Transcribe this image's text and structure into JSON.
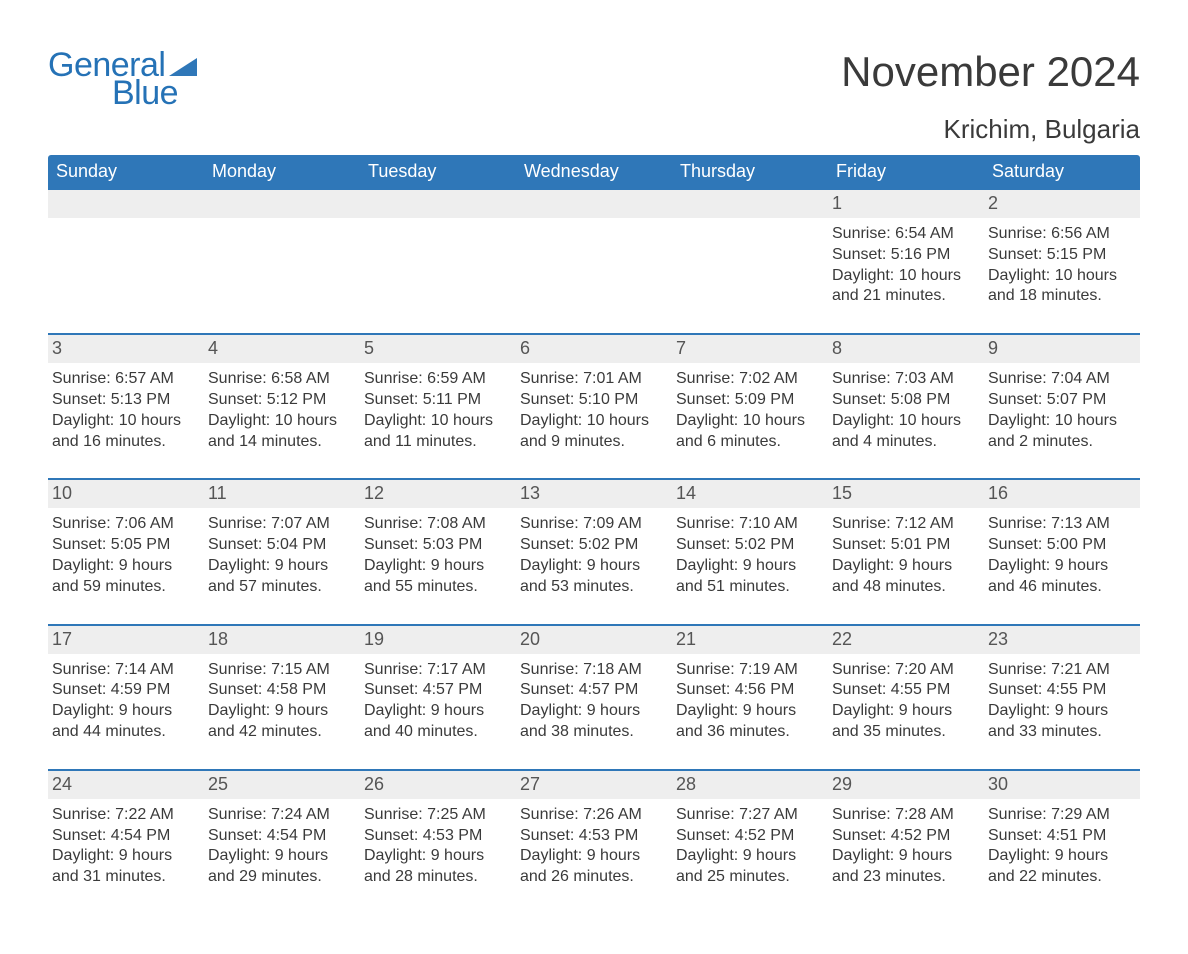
{
  "logo": {
    "text1": "General",
    "text2": "Blue",
    "brand_color": "#2572b6"
  },
  "title": "November 2024",
  "location": "Krichim, Bulgaria",
  "colors": {
    "header_bg": "#2f77b8",
    "header_fg": "#ffffff",
    "daynum_band": "#eeeeee",
    "text": "#3a3a3a",
    "rule": "#2f77b8"
  },
  "days_of_week": [
    "Sunday",
    "Monday",
    "Tuesday",
    "Wednesday",
    "Thursday",
    "Friday",
    "Saturday"
  ],
  "weeks": [
    [
      null,
      null,
      null,
      null,
      null,
      {
        "n": "1",
        "sunrise": "6:54 AM",
        "sunset": "5:16 PM",
        "daylight": "10 hours and 21 minutes."
      },
      {
        "n": "2",
        "sunrise": "6:56 AM",
        "sunset": "5:15 PM",
        "daylight": "10 hours and 18 minutes."
      }
    ],
    [
      {
        "n": "3",
        "sunrise": "6:57 AM",
        "sunset": "5:13 PM",
        "daylight": "10 hours and 16 minutes."
      },
      {
        "n": "4",
        "sunrise": "6:58 AM",
        "sunset": "5:12 PM",
        "daylight": "10 hours and 14 minutes."
      },
      {
        "n": "5",
        "sunrise": "6:59 AM",
        "sunset": "5:11 PM",
        "daylight": "10 hours and 11 minutes."
      },
      {
        "n": "6",
        "sunrise": "7:01 AM",
        "sunset": "5:10 PM",
        "daylight": "10 hours and 9 minutes."
      },
      {
        "n": "7",
        "sunrise": "7:02 AM",
        "sunset": "5:09 PM",
        "daylight": "10 hours and 6 minutes."
      },
      {
        "n": "8",
        "sunrise": "7:03 AM",
        "sunset": "5:08 PM",
        "daylight": "10 hours and 4 minutes."
      },
      {
        "n": "9",
        "sunrise": "7:04 AM",
        "sunset": "5:07 PM",
        "daylight": "10 hours and 2 minutes."
      }
    ],
    [
      {
        "n": "10",
        "sunrise": "7:06 AM",
        "sunset": "5:05 PM",
        "daylight": "9 hours and 59 minutes."
      },
      {
        "n": "11",
        "sunrise": "7:07 AM",
        "sunset": "5:04 PM",
        "daylight": "9 hours and 57 minutes."
      },
      {
        "n": "12",
        "sunrise": "7:08 AM",
        "sunset": "5:03 PM",
        "daylight": "9 hours and 55 minutes."
      },
      {
        "n": "13",
        "sunrise": "7:09 AM",
        "sunset": "5:02 PM",
        "daylight": "9 hours and 53 minutes."
      },
      {
        "n": "14",
        "sunrise": "7:10 AM",
        "sunset": "5:02 PM",
        "daylight": "9 hours and 51 minutes."
      },
      {
        "n": "15",
        "sunrise": "7:12 AM",
        "sunset": "5:01 PM",
        "daylight": "9 hours and 48 minutes."
      },
      {
        "n": "16",
        "sunrise": "7:13 AM",
        "sunset": "5:00 PM",
        "daylight": "9 hours and 46 minutes."
      }
    ],
    [
      {
        "n": "17",
        "sunrise": "7:14 AM",
        "sunset": "4:59 PM",
        "daylight": "9 hours and 44 minutes."
      },
      {
        "n": "18",
        "sunrise": "7:15 AM",
        "sunset": "4:58 PM",
        "daylight": "9 hours and 42 minutes."
      },
      {
        "n": "19",
        "sunrise": "7:17 AM",
        "sunset": "4:57 PM",
        "daylight": "9 hours and 40 minutes."
      },
      {
        "n": "20",
        "sunrise": "7:18 AM",
        "sunset": "4:57 PM",
        "daylight": "9 hours and 38 minutes."
      },
      {
        "n": "21",
        "sunrise": "7:19 AM",
        "sunset": "4:56 PM",
        "daylight": "9 hours and 36 minutes."
      },
      {
        "n": "22",
        "sunrise": "7:20 AM",
        "sunset": "4:55 PM",
        "daylight": "9 hours and 35 minutes."
      },
      {
        "n": "23",
        "sunrise": "7:21 AM",
        "sunset": "4:55 PM",
        "daylight": "9 hours and 33 minutes."
      }
    ],
    [
      {
        "n": "24",
        "sunrise": "7:22 AM",
        "sunset": "4:54 PM",
        "daylight": "9 hours and 31 minutes."
      },
      {
        "n": "25",
        "sunrise": "7:24 AM",
        "sunset": "4:54 PM",
        "daylight": "9 hours and 29 minutes."
      },
      {
        "n": "26",
        "sunrise": "7:25 AM",
        "sunset": "4:53 PM",
        "daylight": "9 hours and 28 minutes."
      },
      {
        "n": "27",
        "sunrise": "7:26 AM",
        "sunset": "4:53 PM",
        "daylight": "9 hours and 26 minutes."
      },
      {
        "n": "28",
        "sunrise": "7:27 AM",
        "sunset": "4:52 PM",
        "daylight": "9 hours and 25 minutes."
      },
      {
        "n": "29",
        "sunrise": "7:28 AM",
        "sunset": "4:52 PM",
        "daylight": "9 hours and 23 minutes."
      },
      {
        "n": "30",
        "sunrise": "7:29 AM",
        "sunset": "4:51 PM",
        "daylight": "9 hours and 22 minutes."
      }
    ]
  ],
  "labels": {
    "sunrise": "Sunrise: ",
    "sunset": "Sunset: ",
    "daylight": "Daylight: "
  }
}
